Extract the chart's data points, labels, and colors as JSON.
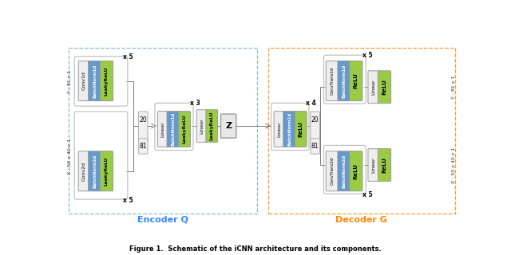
{
  "bg_color": "#ffffff",
  "block_white": "#eeeeee",
  "block_blue": "#6699cc",
  "block_green": "#99cc44",
  "block_edge": "#999999",
  "enc_border_color": "#88bbdd",
  "dec_border_color": "#ff9933",
  "encoder_label": "Encoder Q",
  "decoder_label": "Decoder G",
  "encoder_label_color": "#3388ff",
  "decoder_label_color": "#ff8800",
  "z_label": "Z",
  "fig_caption": "Figure 1.  Schematic of the iCNN architecture and its components."
}
